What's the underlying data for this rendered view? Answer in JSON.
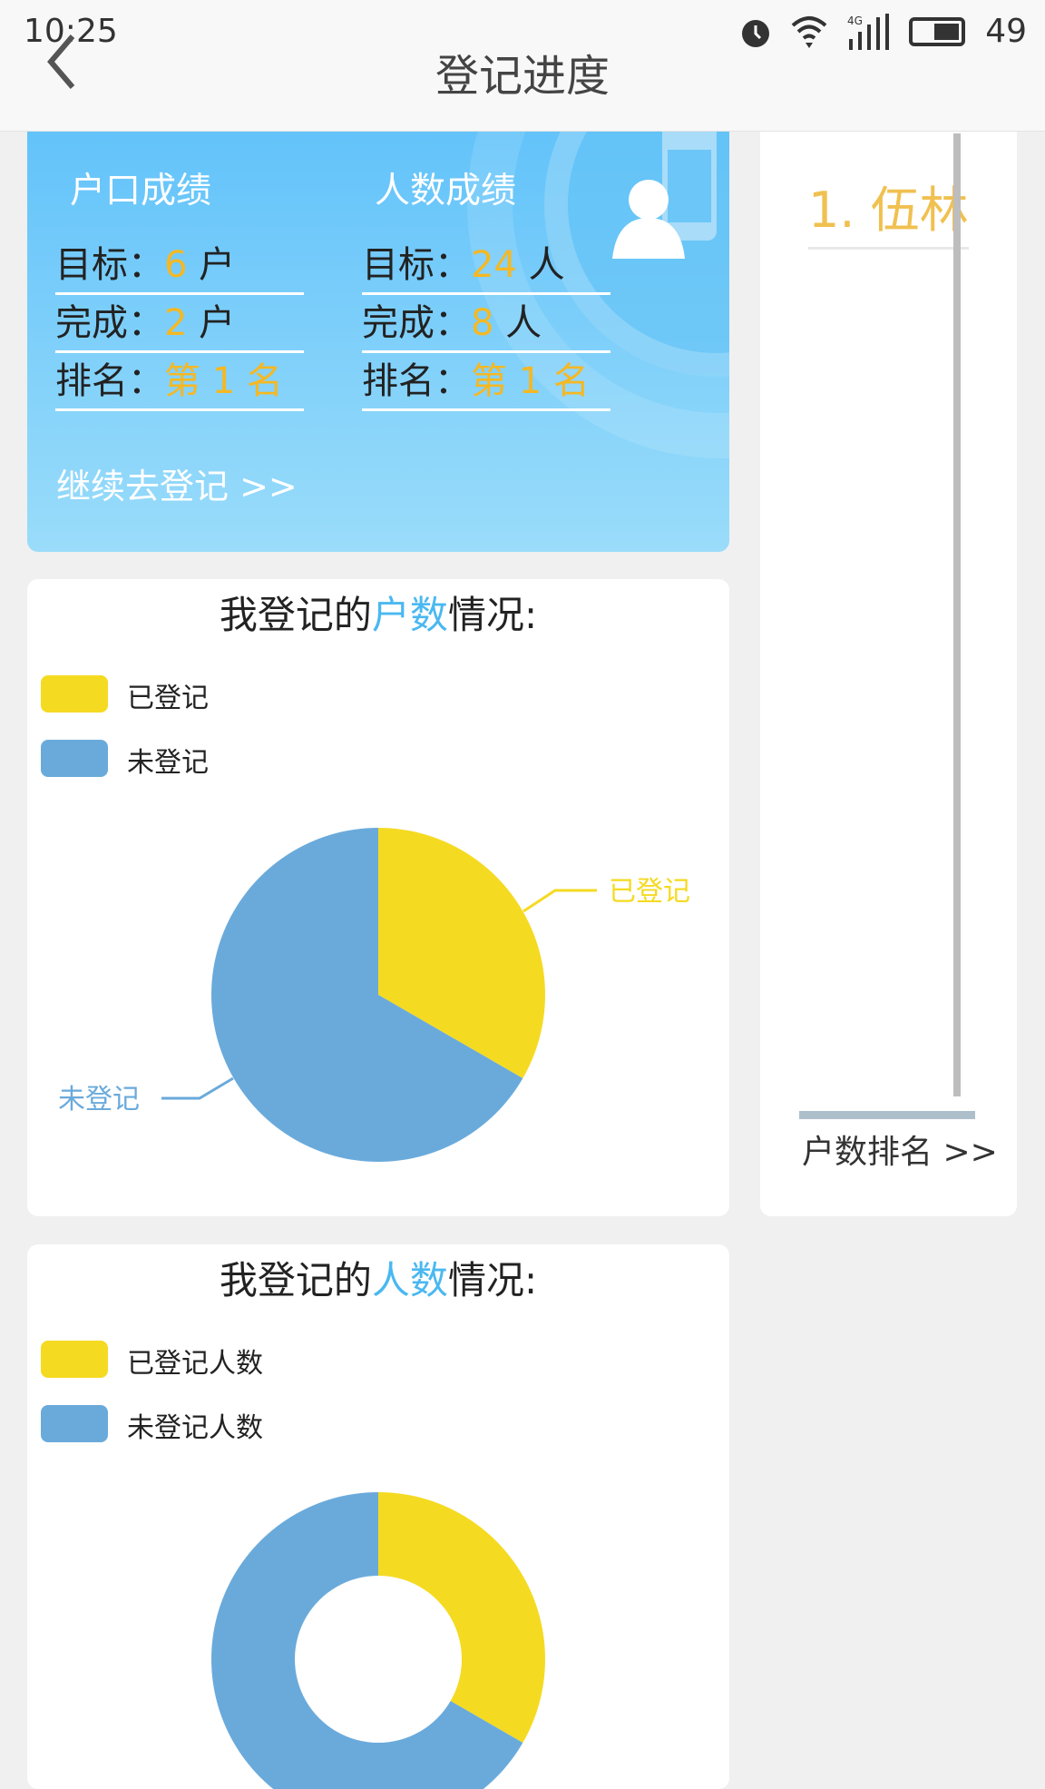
{
  "status_bar": {
    "time": "10:25",
    "battery": "49",
    "network": "4G"
  },
  "header": {
    "title": "登记进度",
    "back_icon": "chevron-left-icon"
  },
  "summary": {
    "household": {
      "heading": "户口成绩",
      "rows": [
        {
          "label": "目标：",
          "value": "6",
          "unit": "户"
        },
        {
          "label": "完成：",
          "value": "2",
          "unit": "户"
        },
        {
          "label": "排名：",
          "value": "第 1 名",
          "unit": ""
        }
      ]
    },
    "people": {
      "heading": "人数成绩",
      "rows": [
        {
          "label": "目标：",
          "value": "24",
          "unit": "人"
        },
        {
          "label": "完成：",
          "value": "8",
          "unit": "人"
        },
        {
          "label": "排名：",
          "value": "第 1 名",
          "unit": ""
        }
      ]
    },
    "continue_link": "继续去登记 >>"
  },
  "ranking": {
    "items": [
      {
        "text": "1. 伍林"
      }
    ],
    "link": "户数排名 >>"
  },
  "colors": {
    "registered": "#f5da22",
    "unregistered": "#6aaadb",
    "accent": "#4ab8f0",
    "value": "#f5b823"
  },
  "households_card": {
    "title_pre": "我登记的",
    "title_hl": "户数",
    "title_post": "情况:"
  },
  "people_card": {
    "title_pre": "我登记的",
    "title_hl": "人数",
    "title_post": "情况:"
  },
  "chart_data": [
    {
      "type": "pie",
      "legend": [
        "已登记",
        "未登记"
      ],
      "legend_placement": "top-left",
      "categories": [
        "已登记",
        "未登记"
      ],
      "values": [
        2,
        4
      ],
      "labels": [
        "已登记",
        "未登记"
      ]
    },
    {
      "type": "pie",
      "donut": true,
      "legend": [
        "已登记人数",
        "未登记人数"
      ],
      "legend_placement": "top-left",
      "categories": [
        "已登记人数",
        "未登记人数"
      ],
      "values": [
        8,
        16
      ]
    }
  ]
}
